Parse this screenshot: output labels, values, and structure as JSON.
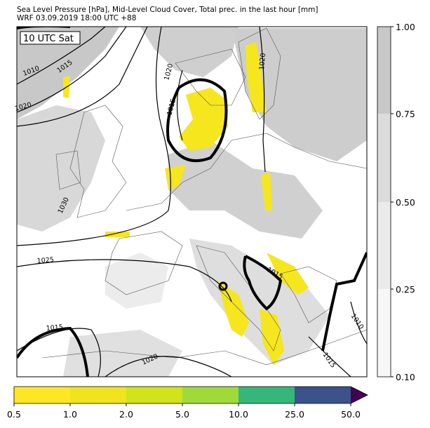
{
  "header": {
    "line1": "Sea Level Pressure [hPa], Mid-Level Cloud Cover, Total prec. in the last hour [mm]",
    "line2": "WRF 03.09.2019 18:00 UTC +88"
  },
  "map": {
    "time_label": "10 UTC Sat",
    "contour_labels": [
      "1010",
      "1015",
      "1020",
      "1020",
      "1015",
      "1020",
      "1030",
      "1025",
      "1015",
      "1020",
      "1015",
      "1010",
      "1015"
    ]
  },
  "colorbar_cloud": {
    "ticks": [
      "1.00",
      "0.75",
      "0.50",
      "0.25",
      "0.10"
    ]
  },
  "colorbar_precip": {
    "ticks": [
      "0.5",
      "1.0",
      "2.0",
      "5.0",
      "10.0",
      "25.0",
      "50.0"
    ]
  }
}
